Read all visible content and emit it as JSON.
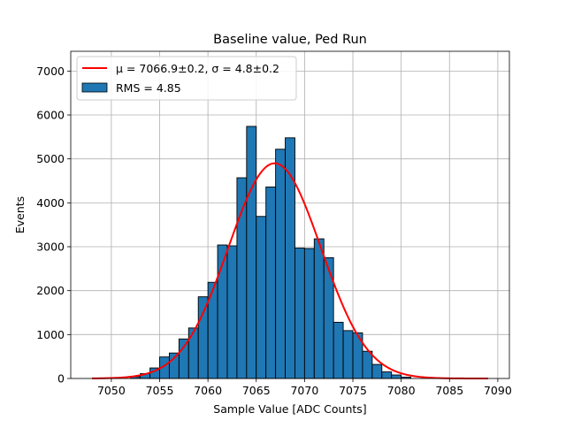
{
  "chart_data": {
    "type": "bar",
    "title": "Baseline value, Ped Run",
    "xlabel": "Sample Value [ADC Counts]",
    "ylabel": "Events",
    "xlim": [
      7045.8,
      7091.2
    ],
    "ylim": [
      0,
      7450
    ],
    "grid": true,
    "legend_position": "top-left",
    "x_ticks": [
      7050,
      7055,
      7060,
      7065,
      7070,
      7075,
      7080,
      7085,
      7090
    ],
    "y_ticks": [
      0,
      1000,
      2000,
      3000,
      4000,
      5000,
      6000,
      7000
    ],
    "bin_width": 1,
    "bins": [
      {
        "x": 7052.5,
        "y": 40
      },
      {
        "x": 7053.5,
        "y": 110
      },
      {
        "x": 7054.5,
        "y": 240
      },
      {
        "x": 7055.5,
        "y": 490
      },
      {
        "x": 7056.5,
        "y": 580
      },
      {
        "x": 7057.5,
        "y": 900
      },
      {
        "x": 7058.5,
        "y": 1150
      },
      {
        "x": 7059.5,
        "y": 1860
      },
      {
        "x": 7060.5,
        "y": 2190
      },
      {
        "x": 7061.5,
        "y": 3040
      },
      {
        "x": 7062.5,
        "y": 3020
      },
      {
        "x": 7063.5,
        "y": 4570
      },
      {
        "x": 7064.5,
        "y": 5740
      },
      {
        "x": 7065.5,
        "y": 3690
      },
      {
        "x": 7066.5,
        "y": 4360
      },
      {
        "x": 7067.5,
        "y": 5220
      },
      {
        "x": 7068.5,
        "y": 5480
      },
      {
        "x": 7069.5,
        "y": 2970
      },
      {
        "x": 7070.5,
        "y": 2960
      },
      {
        "x": 7071.5,
        "y": 3180
      },
      {
        "x": 7072.5,
        "y": 2750
      },
      {
        "x": 7073.5,
        "y": 1280
      },
      {
        "x": 7074.5,
        "y": 1090
      },
      {
        "x": 7075.5,
        "y": 1040
      },
      {
        "x": 7076.5,
        "y": 620
      },
      {
        "x": 7077.5,
        "y": 320
      },
      {
        "x": 7078.5,
        "y": 150
      },
      {
        "x": 7079.5,
        "y": 80
      },
      {
        "x": 7080.5,
        "y": 30
      }
    ],
    "fit": {
      "mu": 7066.9,
      "sigma": 4.8,
      "amplitude": 4900,
      "x_range": [
        7048,
        7089
      ]
    },
    "series": [
      {
        "name": "RMS = 4.85",
        "kind": "histogram",
        "color": "#1f77b4",
        "edgecolor": "#000000"
      },
      {
        "name": "μ = 7066.9±0.2, σ = 4.8±0.2",
        "kind": "line",
        "color": "#ff0000"
      }
    ]
  }
}
